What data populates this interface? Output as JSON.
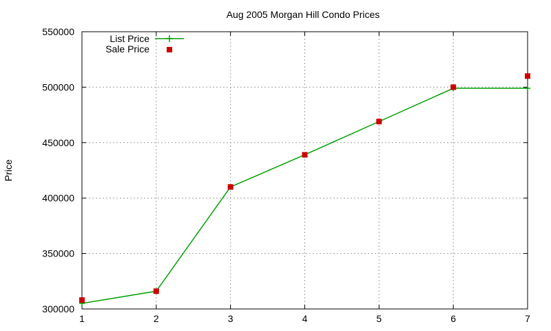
{
  "chart_data": {
    "type": "line",
    "title": "Aug 2005 Morgan Hill Condo Prices",
    "xlabel": "",
    "ylabel": "Price",
    "x": [
      1,
      2,
      3,
      4,
      5,
      6,
      7
    ],
    "xlim": [
      1,
      7
    ],
    "ylim": [
      300000,
      550000
    ],
    "x_ticks": [
      "1",
      "2",
      "3",
      "4",
      "5",
      "6",
      "7"
    ],
    "y_ticks": [
      "300000",
      "350000",
      "400000",
      "450000",
      "500000",
      "550000"
    ],
    "grid": true,
    "legend_position": "top-left",
    "series": [
      {
        "name": "List Price",
        "style": "line-with-plus-markers",
        "color": "#00a000",
        "values": [
          305000,
          316000,
          410000,
          439000,
          469000,
          499000,
          499000
        ]
      },
      {
        "name": "Sale Price",
        "style": "square-markers",
        "color": "#cc0000",
        "values": [
          308000,
          316000,
          410000,
          439000,
          469000,
          500000,
          510000
        ]
      }
    ]
  }
}
